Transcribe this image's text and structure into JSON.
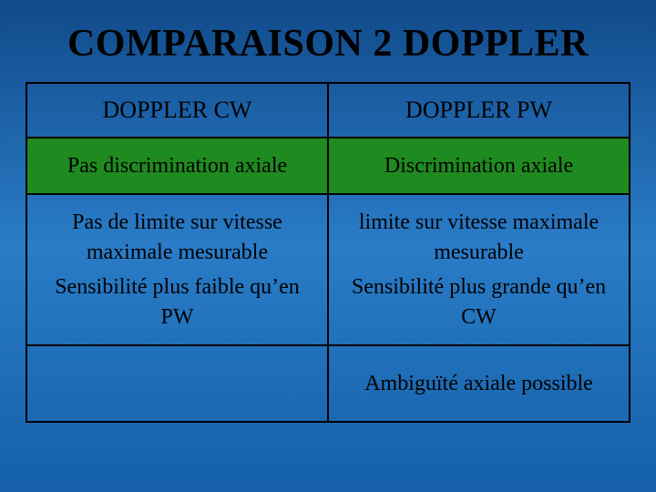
{
  "slide": {
    "title": "COMPARAISON 2 DOPPLER",
    "background_gradient": {
      "top": "#114a8a",
      "mid": "#2a7cc7",
      "bottom": "#1560a8"
    },
    "title_color": "#000000",
    "title_fontsize": 42
  },
  "table": {
    "type": "table",
    "border_color": "#000000",
    "green_row_color": "#1f8a1f",
    "text_color": "#000000",
    "header_fontsize": 26,
    "cell_fontsize": 24,
    "columns": [
      {
        "label": "DOPPLER CW"
      },
      {
        "label": "DOPPLER PW"
      }
    ],
    "rows": [
      {
        "style": "green",
        "cells": [
          "Pas discrimination axiale",
          "Discrimination axiale"
        ]
      },
      {
        "style": "normal",
        "cells_multiline": [
          {
            "line1": "Pas de limite sur vitesse maximale mesurable",
            "line2": "Sensibilité plus faible qu’en PW"
          },
          {
            "line1": "limite sur vitesse maximale mesurable",
            "line2": "Sensibilité plus grande qu’en CW"
          }
        ]
      },
      {
        "style": "last",
        "cells": [
          "",
          "Ambiguïté axiale possible"
        ]
      }
    ]
  }
}
